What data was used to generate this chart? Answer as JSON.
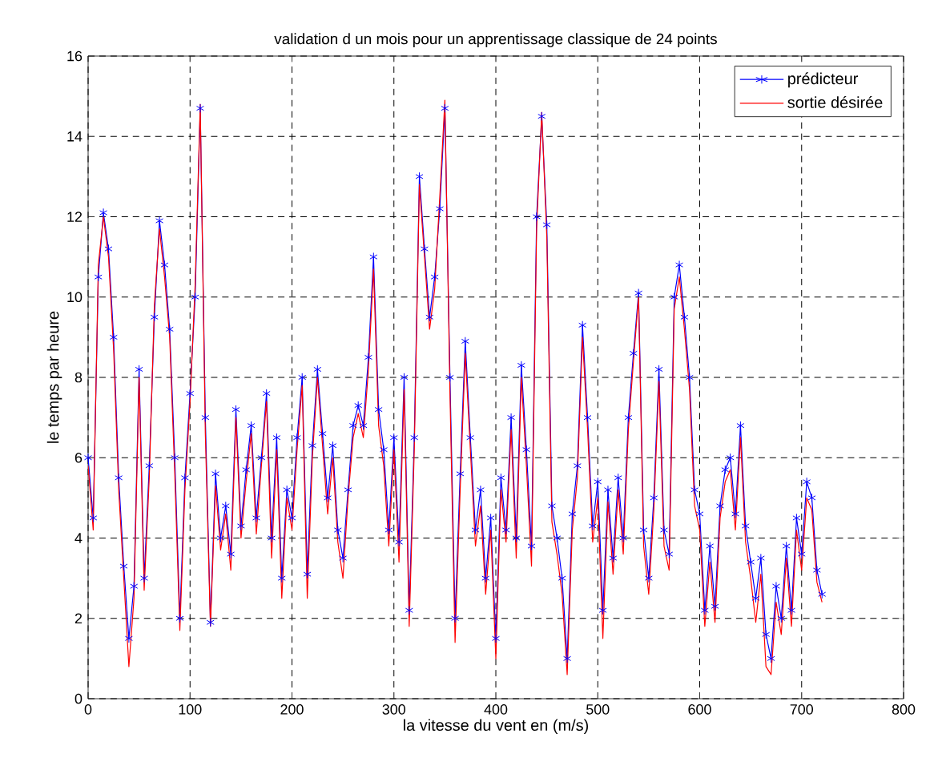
{
  "chart_data": {
    "type": "line",
    "title": "validation d un mois pour un apprentissage classique de 24 points",
    "xlabel": "la vitesse du vent en (m/s)",
    "ylabel": "le temps par heure",
    "x": [
      0,
      5,
      10,
      15,
      20,
      25,
      30,
      35,
      40,
      45,
      50,
      55,
      60,
      65,
      70,
      75,
      80,
      85,
      90,
      95,
      100,
      105,
      110,
      115,
      120,
      125,
      130,
      135,
      140,
      145,
      150,
      155,
      160,
      165,
      170,
      175,
      180,
      185,
      190,
      195,
      200,
      205,
      210,
      215,
      220,
      225,
      230,
      235,
      240,
      245,
      250,
      255,
      260,
      265,
      270,
      275,
      280,
      285,
      290,
      295,
      300,
      305,
      310,
      315,
      320,
      325,
      330,
      335,
      340,
      345,
      350,
      355,
      360,
      365,
      370,
      375,
      380,
      385,
      390,
      395,
      400,
      405,
      410,
      415,
      420,
      425,
      430,
      435,
      440,
      445,
      450,
      455,
      460,
      465,
      470,
      475,
      480,
      485,
      490,
      495,
      500,
      505,
      510,
      515,
      520,
      525,
      530,
      535,
      540,
      545,
      550,
      555,
      560,
      565,
      570,
      575,
      580,
      585,
      590,
      595,
      600,
      605,
      610,
      615,
      620,
      625,
      630,
      635,
      640,
      645,
      650,
      655,
      660,
      665,
      670,
      675,
      680,
      685,
      690,
      695,
      700,
      705,
      710,
      715,
      720
    ],
    "series": [
      {
        "name": "prédicteur",
        "color": "#0000ff",
        "marker": "cross",
        "values": [
          6.0,
          4.5,
          10.5,
          12.1,
          11.2,
          9.0,
          5.5,
          3.3,
          1.5,
          2.8,
          8.2,
          3.0,
          5.8,
          9.5,
          11.9,
          10.8,
          9.2,
          6.0,
          2.0,
          5.5,
          7.6,
          10.0,
          14.7,
          7.0,
          1.9,
          5.6,
          4.0,
          4.8,
          3.6,
          7.2,
          4.3,
          5.7,
          6.8,
          4.5,
          6.0,
          7.6,
          4.0,
          6.5,
          3.0,
          5.2,
          4.5,
          6.5,
          8.0,
          3.1,
          6.3,
          8.2,
          6.6,
          5.0,
          6.3,
          4.2,
          3.5,
          5.2,
          6.8,
          7.3,
          6.8,
          8.5,
          11.0,
          7.2,
          6.2,
          4.2,
          6.5,
          3.9,
          8.0,
          2.2,
          6.5,
          13.0,
          11.2,
          9.5,
          10.5,
          12.2,
          14.7,
          8.0,
          2.0,
          5.6,
          8.9,
          6.5,
          4.2,
          5.2,
          3.0,
          4.5,
          1.5,
          5.5,
          4.2,
          7.0,
          4.0,
          8.3,
          6.2,
          3.8,
          12.0,
          14.5,
          11.8,
          4.8,
          4.0,
          3.0,
          1.0,
          4.6,
          5.8,
          9.3,
          7.0,
          4.3,
          5.4,
          2.2,
          5.2,
          3.5,
          5.5,
          4.0,
          7.0,
          8.6,
          10.1,
          4.2,
          3.0,
          5.0,
          8.2,
          4.2,
          3.6,
          10.0,
          10.8,
          9.5,
          8.0,
          5.2,
          4.6,
          2.2,
          3.8,
          2.3,
          4.8,
          5.7,
          6.0,
          4.6,
          6.8,
          4.3,
          3.4,
          2.5,
          3.5,
          1.6,
          1.0,
          2.8,
          2.0,
          3.8,
          2.2,
          4.5,
          3.6,
          5.4,
          5.0,
          3.2,
          2.6
        ]
      },
      {
        "name": "sortie désirée",
        "color": "#ff0000",
        "marker": "none",
        "values": [
          5.8,
          4.2,
          10.8,
          12.0,
          11.0,
          8.7,
          5.2,
          3.0,
          0.8,
          2.5,
          8.0,
          2.7,
          5.5,
          9.8,
          11.7,
          10.5,
          9.0,
          5.6,
          1.7,
          5.2,
          7.4,
          10.3,
          14.8,
          6.6,
          1.8,
          5.3,
          3.7,
          4.6,
          3.2,
          7.0,
          4.0,
          5.4,
          6.6,
          4.1,
          5.8,
          7.4,
          3.5,
          6.2,
          2.5,
          5.0,
          4.2,
          6.2,
          7.8,
          2.5,
          6.0,
          8.0,
          6.3,
          4.6,
          6.0,
          3.9,
          3.0,
          5.0,
          6.5,
          7.1,
          6.5,
          8.2,
          10.7,
          6.8,
          5.8,
          3.8,
          6.2,
          3.4,
          7.7,
          1.8,
          6.2,
          12.8,
          11.0,
          9.2,
          10.2,
          12.5,
          14.9,
          7.6,
          1.4,
          5.2,
          8.6,
          6.2,
          3.8,
          4.8,
          2.6,
          4.2,
          1.0,
          5.2,
          3.9,
          6.7,
          3.5,
          8.0,
          5.8,
          3.3,
          11.7,
          14.6,
          11.5,
          4.4,
          3.6,
          2.6,
          0.6,
          4.2,
          5.5,
          9.0,
          6.7,
          3.9,
          5.0,
          1.5,
          4.9,
          3.1,
          5.2,
          3.6,
          6.7,
          8.4,
          10.0,
          3.8,
          2.6,
          4.7,
          7.9,
          3.8,
          3.2,
          9.7,
          10.5,
          9.2,
          7.7,
          4.8,
          4.2,
          1.8,
          3.4,
          1.9,
          4.5,
          5.4,
          5.7,
          4.2,
          6.5,
          3.9,
          3.0,
          1.9,
          3.1,
          0.8,
          0.6,
          2.4,
          1.6,
          3.5,
          1.8,
          4.2,
          3.2,
          5.0,
          4.7,
          2.9,
          2.4
        ]
      }
    ],
    "xlim": [
      0,
      800
    ],
    "ylim": [
      0,
      16
    ],
    "xticks": [
      0,
      100,
      200,
      300,
      400,
      500,
      600,
      700,
      800
    ],
    "yticks": [
      0,
      2,
      4,
      6,
      8,
      10,
      12,
      14,
      16
    ],
    "grid": true,
    "legend": "top right"
  }
}
